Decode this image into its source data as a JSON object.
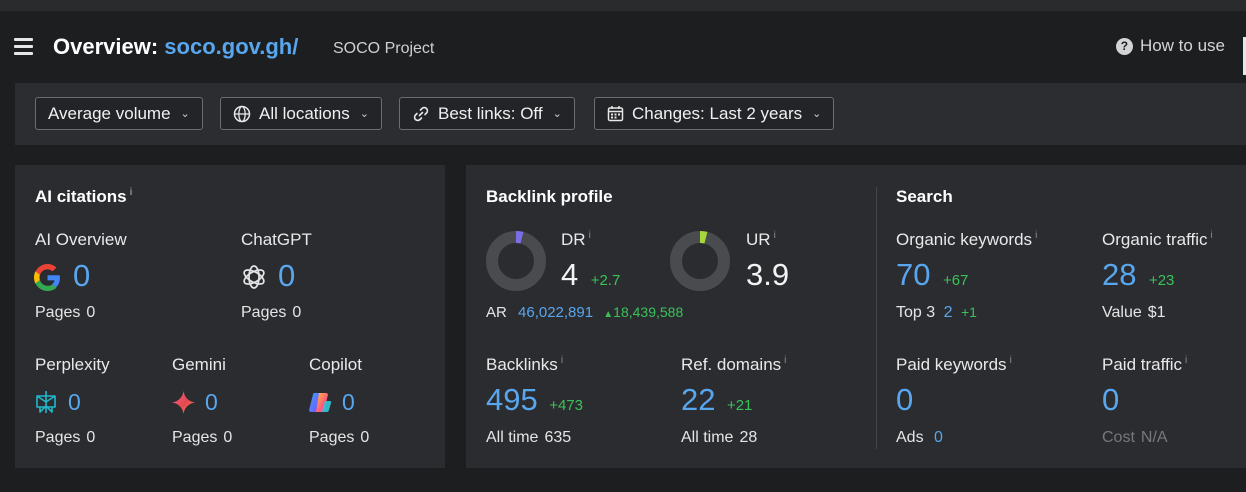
{
  "header": {
    "title_prefix": "Overview:",
    "domain": "soco.gov.gh/",
    "project": "SOCO Project",
    "how_to_use": "How to use"
  },
  "filters": {
    "volume": "Average volume",
    "locations": "All locations",
    "best_links": "Best links: Off",
    "changes": "Changes: Last 2 years"
  },
  "ai_citations": {
    "title": "AI citations",
    "pages_label": "Pages",
    "ai_overview": {
      "label": "AI Overview",
      "value": "0",
      "pages": "0"
    },
    "chatgpt": {
      "label": "ChatGPT",
      "value": "0",
      "pages": "0"
    },
    "perplexity": {
      "label": "Perplexity",
      "value": "0",
      "pages": "0"
    },
    "gemini": {
      "label": "Gemini",
      "value": "0",
      "pages": "0"
    },
    "copilot": {
      "label": "Copilot",
      "value": "0",
      "pages": "0"
    }
  },
  "backlink_profile": {
    "title": "Backlink profile",
    "dr": {
      "label": "DR",
      "value": "4",
      "delta": "+2.7",
      "fraction": 0.04
    },
    "ur": {
      "label": "UR",
      "value": "3.9",
      "fraction": 0.04
    },
    "ar": {
      "label": "AR",
      "value": "46,022,891",
      "delta": "18,439,588"
    },
    "backlinks": {
      "label": "Backlinks",
      "value": "495",
      "delta": "+473",
      "all_time_label": "All time",
      "all_time": "635"
    },
    "ref_domains": {
      "label": "Ref. domains",
      "value": "22",
      "delta": "+21",
      "all_time_label": "All time",
      "all_time": "28"
    }
  },
  "search": {
    "title": "Search",
    "organic_keywords": {
      "label": "Organic keywords",
      "value": "70",
      "delta": "+67",
      "top3_label": "Top 3",
      "top3": "2",
      "top3_delta": "+1"
    },
    "organic_traffic": {
      "label": "Organic traffic",
      "value": "28",
      "delta": "+23",
      "value_label": "Value",
      "value_amount": "$1"
    },
    "paid_keywords": {
      "label": "Paid keywords",
      "value": "0",
      "ads_label": "Ads",
      "ads": "0"
    },
    "paid_traffic": {
      "label": "Paid traffic",
      "value": "0",
      "cost_label": "Cost",
      "cost": "N/A"
    }
  },
  "colors": {
    "accent_blue": "#58a6ee",
    "delta_green": "#3ac25a",
    "dr_donut": "#7b6ee8",
    "ur_donut": "#a5d63b"
  },
  "icons": {
    "menu": "menu-icon",
    "help": "help-icon",
    "globe": "globe-icon",
    "link": "link-icon",
    "calendar": "calendar-icon",
    "google": "google-icon",
    "chatgpt": "chatgpt-icon",
    "perplexity": "perplexity-icon",
    "gemini": "gemini-icon",
    "copilot": "copilot-icon"
  }
}
